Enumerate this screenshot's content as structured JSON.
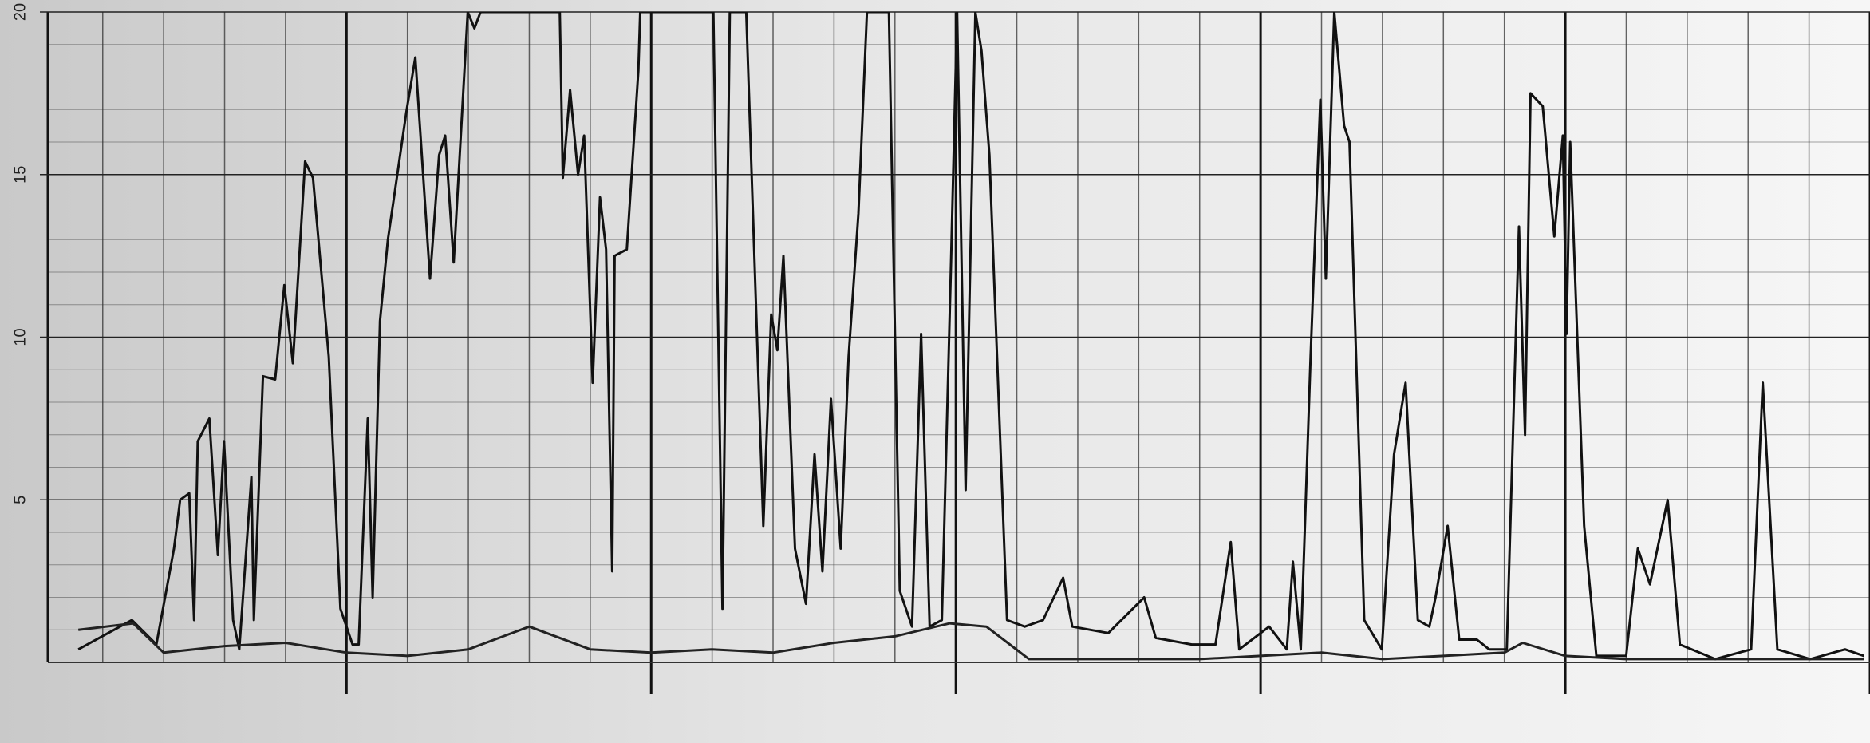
{
  "chart_data": {
    "type": "line",
    "xlim": [
      5.1,
      35
    ],
    "ylim": [
      0,
      20
    ],
    "yticks": [
      5,
      10,
      15,
      20
    ],
    "grid": true,
    "series": [
      {
        "color": "#111111",
        "x": [
          5.6,
          6.48,
          6.88,
          7.17,
          7.27,
          7.42,
          7.5,
          7.56,
          7.75,
          7.89,
          7.99,
          8.14,
          8.24,
          8.44,
          8.48,
          8.63,
          8.83,
          8.98,
          9.12,
          9.32,
          9.45,
          9.71,
          9.9,
          10.1,
          10.2,
          10.35,
          10.43,
          10.55,
          10.68,
          10.98,
          11.13,
          11.37,
          11.52,
          11.62,
          11.76,
          11.99,
          12.1,
          12.2,
          12.3,
          13.5,
          13.55,
          13.67,
          13.8,
          13.9,
          14.04,
          14.16,
          14.26,
          14.36,
          14.4,
          14.6,
          14.79,
          14.82,
          16.02,
          16.17,
          16.29,
          16.56,
          16.84,
          16.97,
          17.07,
          17.17,
          17.36,
          17.54,
          17.68,
          17.81,
          17.95,
          18.11,
          18.24,
          18.4,
          18.54,
          18.9,
          19.08,
          19.28,
          19.43,
          19.57,
          19.77,
          19.92,
          20.02,
          20.16,
          20.32,
          20.42,
          20.55,
          20.84,
          21.13,
          21.43,
          21.76,
          21.91,
          22.5,
          23.09,
          23.28,
          23.87,
          24.26,
          24.51,
          24.65,
          25.14,
          25.43,
          25.53,
          25.66,
          25.82,
          25.98,
          26.07,
          26.21,
          26.37,
          26.46,
          26.7,
          26.99,
          27.19,
          27.38,
          27.58,
          27.77,
          27.87,
          28.07,
          28.26,
          28.55,
          28.75,
          29.04,
          29.24,
          29.34,
          29.43,
          29.63,
          29.82,
          29.96,
          30.02,
          30.08,
          30.31,
          30.51,
          31.0,
          31.19,
          31.39,
          31.68,
          31.88,
          32.46,
          33.05,
          33.24,
          33.48,
          34.02,
          34.59,
          34.9
        ],
        "values": [
          0.4,
          1.3,
          0.55,
          3.5,
          5.0,
          5.2,
          1.3,
          6.8,
          7.5,
          3.3,
          6.8,
          1.3,
          0.4,
          5.7,
          1.3,
          8.8,
          8.7,
          11.6,
          9.2,
          15.4,
          14.9,
          9.4,
          1.65,
          0.55,
          0.55,
          7.5,
          2.0,
          10.5,
          13.0,
          16.9,
          18.6,
          11.8,
          15.6,
          16.2,
          12.3,
          20,
          19.5,
          20,
          20,
          20,
          14.9,
          17.6,
          15,
          16.2,
          8.6,
          14.3,
          12.7,
          2.8,
          12.5,
          12.7,
          18.2,
          20,
          20,
          1.65,
          20,
          20,
          4.2,
          10.7,
          9.6,
          12.5,
          3.5,
          1.8,
          6.4,
          2.8,
          8.1,
          3.5,
          9.4,
          13.8,
          20,
          20,
          2.2,
          1.1,
          10.1,
          1.1,
          1.3,
          12.3,
          20,
          5.3,
          20,
          18.8,
          15.6,
          1.3,
          1.1,
          1.3,
          2.6,
          1.1,
          0.9,
          2.0,
          0.75,
          0.55,
          0.55,
          3.7,
          0.4,
          1.1,
          0.4,
          3.1,
          0.4,
          9.4,
          17.3,
          11.8,
          20,
          16.5,
          16,
          1.3,
          0.4,
          6.4,
          8.6,
          1.3,
          1.1,
          2.0,
          4.2,
          0.7,
          0.7,
          0.4,
          0.4,
          13.4,
          7.0,
          17.5,
          17.1,
          13.1,
          16.2,
          10.1,
          16,
          4.2,
          0.2,
          0.2,
          3.5,
          2.4,
          5.0,
          0.55,
          0.1,
          0.4,
          8.6,
          0.4,
          0.1,
          0.4,
          0.2
        ]
      },
      {
        "color": "#222222",
        "x": [
          5.6,
          6.5,
          7.0,
          8.0,
          9.0,
          10.0,
          11,
          12,
          13,
          14,
          15,
          16,
          17,
          18,
          19,
          19.9,
          20.5,
          21.2,
          22,
          23,
          24,
          25,
          26,
          27,
          28,
          29,
          29.3,
          30,
          31,
          32,
          33,
          34,
          34.9
        ],
        "values": [
          1.0,
          1.2,
          0.3,
          0.5,
          0.6,
          0.3,
          0.2,
          0.4,
          1.1,
          0.4,
          0.3,
          0.4,
          0.3,
          0.6,
          0.8,
          1.2,
          1.1,
          0.1,
          0.1,
          0.1,
          0.1,
          0.2,
          0.3,
          0.1,
          0.2,
          0.3,
          0.6,
          0.2,
          0.1,
          0.1,
          0.1,
          0.1,
          0.1
        ]
      }
    ]
  }
}
